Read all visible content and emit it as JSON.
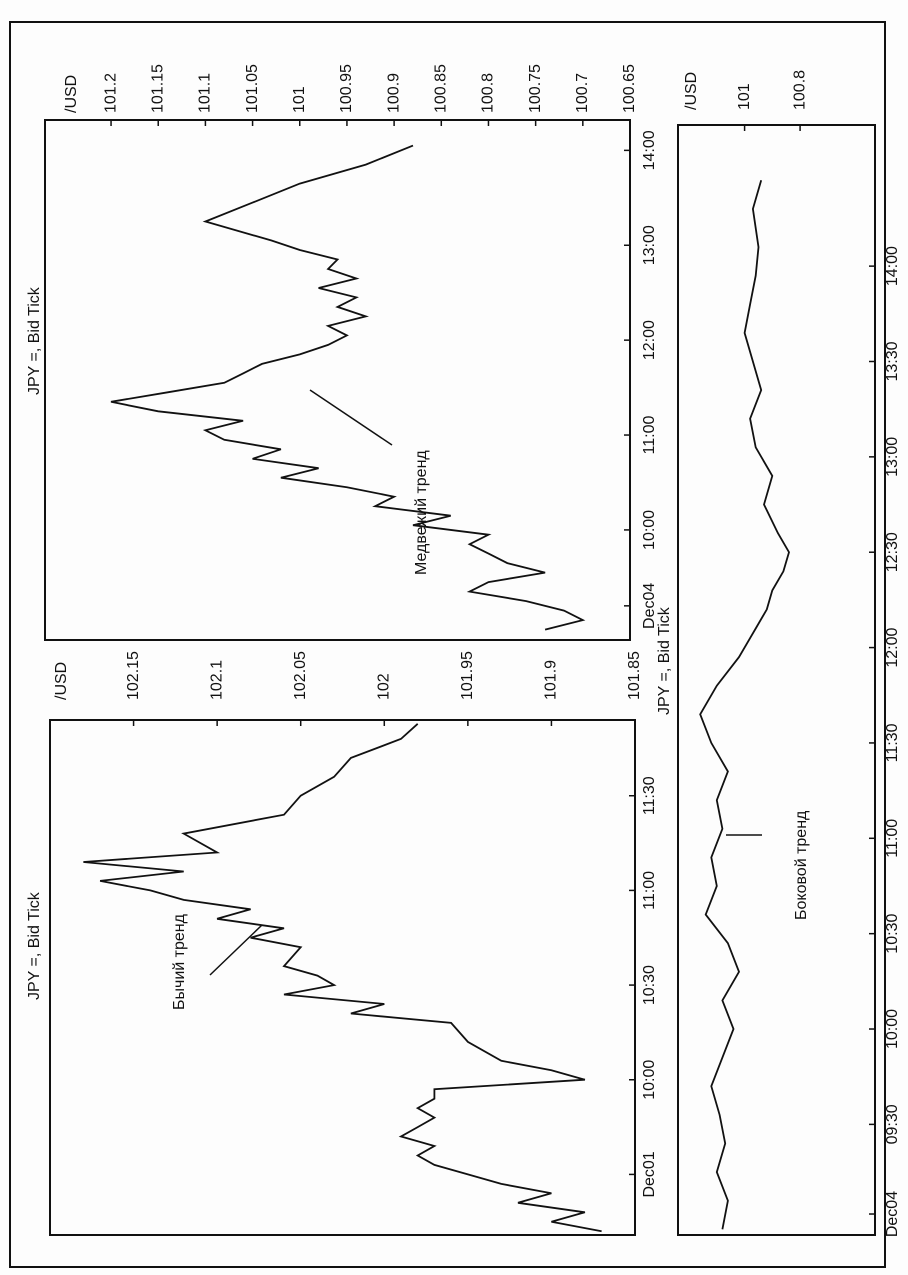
{
  "chart_data": [
    {
      "type": "line",
      "title": "JPY =, Bid Tick",
      "y_unit": "/USD",
      "color": "#111111",
      "annotations": [
        "Бычий тренд"
      ],
      "x": [
        9.2,
        9.25,
        9.3,
        9.35,
        9.4,
        9.45,
        9.5,
        9.55,
        9.6,
        9.65,
        9.7,
        9.75,
        9.8,
        9.85,
        9.9,
        9.95,
        10.0,
        10.05,
        10.1,
        10.2,
        10.3,
        10.35,
        10.4,
        10.45,
        10.5,
        10.55,
        10.6,
        10.7,
        10.75,
        10.8,
        10.85,
        10.9,
        10.95,
        11.0,
        11.05,
        11.1,
        11.15,
        11.2,
        11.3,
        11.4,
        11.5,
        11.6,
        11.7,
        11.8,
        11.88
      ],
      "values": [
        101.87,
        101.9,
        101.88,
        101.92,
        101.9,
        101.93,
        101.95,
        101.97,
        101.98,
        101.97,
        101.99,
        101.98,
        101.97,
        101.98,
        101.97,
        101.97,
        101.88,
        101.9,
        101.93,
        101.95,
        101.96,
        102.02,
        102.0,
        102.06,
        102.03,
        102.04,
        102.06,
        102.05,
        102.08,
        102.06,
        102.1,
        102.08,
        102.12,
        102.14,
        102.17,
        102.12,
        102.18,
        102.1,
        102.12,
        102.06,
        102.05,
        102.03,
        102.02,
        101.99,
        101.98
      ],
      "xlim": [
        9.18,
        11.9
      ],
      "ylim": [
        101.85,
        102.2
      ],
      "xticks": [
        {
          "value": 9.5,
          "label": "Dec01"
        },
        {
          "value": 10,
          "label": "10:00"
        },
        {
          "value": 10.5,
          "label": "10:30"
        },
        {
          "value": 11,
          "label": "11:00"
        },
        {
          "value": 11.5,
          "label": "11:30"
        }
      ],
      "yticks": [
        102.15,
        102.1,
        102.05,
        102,
        101.95,
        101.9,
        101.85
      ]
    },
    {
      "type": "line",
      "title": "JPY =, Bid Tick",
      "y_unit": "/USD",
      "color": "#111111",
      "annotations": [
        "Медвежий тренд"
      ],
      "x": [
        8.95,
        9.05,
        9.15,
        9.25,
        9.35,
        9.45,
        9.55,
        9.65,
        9.75,
        9.85,
        9.95,
        10.05,
        10.15,
        10.25,
        10.35,
        10.45,
        10.55,
        10.65,
        10.75,
        10.85,
        10.95,
        11.05,
        11.15,
        11.25,
        11.35,
        11.45,
        11.55,
        11.65,
        11.75,
        11.85,
        11.95,
        12.05,
        12.15,
        12.25,
        12.35,
        12.45,
        12.55,
        12.65,
        12.75,
        12.85,
        12.95,
        13.05,
        13.25,
        13.45,
        13.65,
        13.85,
        14.05
      ],
      "values": [
        100.74,
        100.7,
        100.72,
        100.76,
        100.82,
        100.8,
        100.74,
        100.78,
        100.8,
        100.82,
        100.8,
        100.88,
        100.84,
        100.92,
        100.9,
        100.95,
        101.02,
        100.98,
        101.05,
        101.02,
        101.08,
        101.1,
        101.06,
        101.15,
        101.2,
        101.14,
        101.08,
        101.06,
        101.04,
        101.0,
        100.97,
        100.95,
        100.97,
        100.93,
        100.96,
        100.94,
        100.98,
        100.94,
        100.97,
        100.96,
        101.0,
        101.03,
        101.1,
        101.05,
        101.0,
        100.93,
        100.88
      ],
      "xlim": [
        8.84,
        14.32
      ],
      "ylim": [
        100.65,
        101.27
      ],
      "xticks": [
        {
          "value": 9.2,
          "label": "Dec04"
        },
        {
          "value": 10,
          "label": "10:00"
        },
        {
          "value": 11,
          "label": "11:00"
        },
        {
          "value": 12,
          "label": "12:00"
        },
        {
          "value": 13,
          "label": "13:00"
        },
        {
          "value": 14,
          "label": "14:00"
        }
      ],
      "yticks": [
        101.2,
        101.15,
        101.1,
        101.05,
        101,
        100.95,
        100.9,
        100.85,
        100.8,
        100.75,
        100.7,
        100.65
      ]
    },
    {
      "type": "line",
      "title": "JPY =, Bid Tick",
      "y_unit": "/USD",
      "color": "#111111",
      "annotations": [
        "Боковой тренд"
      ],
      "x": [
        8.95,
        9.1,
        9.25,
        9.4,
        9.55,
        9.7,
        9.85,
        10.0,
        10.15,
        10.3,
        10.45,
        10.6,
        10.75,
        10.9,
        11.05,
        11.2,
        11.35,
        11.5,
        11.65,
        11.8,
        11.95,
        12.1,
        12.2,
        12.3,
        12.4,
        12.5,
        12.6,
        12.75,
        12.9,
        13.05,
        13.2,
        13.35,
        13.5,
        13.65,
        13.8,
        13.95,
        14.1,
        14.3,
        14.45
      ],
      "values": [
        101.08,
        101.06,
        101.1,
        101.07,
        101.09,
        101.12,
        101.08,
        101.04,
        101.08,
        101.02,
        101.06,
        101.14,
        101.1,
        101.12,
        101.08,
        101.1,
        101.06,
        101.12,
        101.16,
        101.1,
        101.02,
        100.96,
        100.92,
        100.9,
        100.86,
        100.84,
        100.88,
        100.93,
        100.9,
        100.96,
        100.98,
        100.94,
        100.97,
        101.0,
        100.98,
        100.96,
        100.95,
        100.97,
        100.94
      ],
      "xlim": [
        8.92,
        14.74
      ],
      "ylim": [
        100.53,
        101.24
      ],
      "xticks": [
        {
          "value": 9.03,
          "label": "Dec04"
        },
        {
          "value": 9.5,
          "label": "09:30"
        },
        {
          "value": 10,
          "label": "10:00"
        },
        {
          "value": 10.5,
          "label": "10:30"
        },
        {
          "value": 11,
          "label": "11:00"
        },
        {
          "value": 11.5,
          "label": "11:30"
        },
        {
          "value": 12,
          "label": "12:00"
        },
        {
          "value": 12.5,
          "label": "12:30"
        },
        {
          "value": 13,
          "label": "13:00"
        },
        {
          "value": 13.5,
          "label": "13:30"
        },
        {
          "value": 14,
          "label": "14:00"
        }
      ],
      "yticks": [
        101,
        100.8
      ]
    }
  ]
}
